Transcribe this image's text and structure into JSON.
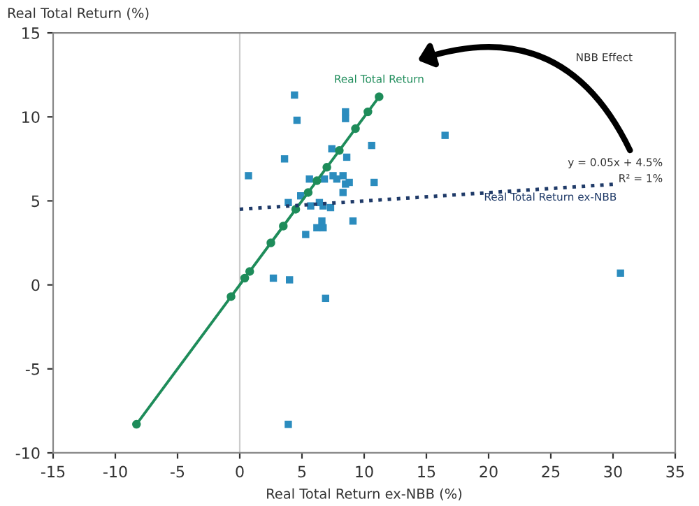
{
  "chart_data": {
    "type": "scatter",
    "xlabel": "Real Total Return ex-NBB (%)",
    "ylabel": "Real Total Return (%)",
    "xlim": [
      -15,
      35
    ],
    "xticks": [
      -15,
      -10,
      -5,
      0,
      5,
      10,
      15,
      20,
      25,
      30,
      35
    ],
    "ylim": [
      -10,
      15
    ],
    "yticks": [
      -10,
      -5,
      0,
      5,
      10,
      15
    ],
    "grid": false,
    "legend": false,
    "ref_lines": [
      {
        "axis": "x",
        "value": 0,
        "color": "#cccccc"
      }
    ],
    "annotations": [
      "NBB Effect",
      "y = 0.05x + 4.5%",
      "R² = 1%"
    ],
    "series": [
      {
        "color": "#2b8cbe",
        "marker": "square",
        "x": [
          0.7,
          4.4,
          4.6,
          3.6,
          8.5,
          8.5,
          7.4,
          10.6,
          16.5,
          8.6,
          7.5,
          8.3,
          7.8,
          8.5,
          8.8,
          10.8,
          8.3,
          3.9,
          4.9,
          5.7,
          6.4,
          7.3,
          5.6,
          6.8,
          5.3,
          6.2,
          6.7,
          6.6,
          9.1,
          2.7,
          4.0,
          6.9,
          3.9,
          30.6,
          6.7
        ],
        "values": [
          6.5,
          11.3,
          9.8,
          7.5,
          10.3,
          9.9,
          8.1,
          8.3,
          8.9,
          7.6,
          6.5,
          6.5,
          6.3,
          6.0,
          6.1,
          6.1,
          5.5,
          4.9,
          5.3,
          4.7,
          4.9,
          4.6,
          6.3,
          6.3,
          3.0,
          3.4,
          3.4,
          3.8,
          3.8,
          0.4,
          0.3,
          -0.8,
          -8.3,
          0.7,
          4.7
        ]
      },
      {
        "type": "line",
        "name": "Real Total Return",
        "color": "#1e8c5a",
        "marker": "circle",
        "line_style": "solid",
        "x": [
          -8.3,
          -0.7,
          0.4,
          0.8,
          2.5,
          3.5,
          4.5,
          5.5,
          6.2,
          7.0,
          8.0,
          9.3,
          10.3,
          11.2
        ],
        "values": [
          -8.3,
          -0.7,
          0.4,
          0.8,
          2.5,
          3.5,
          4.5,
          5.5,
          6.2,
          7.0,
          8.0,
          9.3,
          10.3,
          11.2
        ]
      },
      {
        "type": "line",
        "name": "Real Total Return ex-NBB",
        "color": "#1f3a68",
        "marker": "none",
        "line_style": "dotted",
        "x": [
          0,
          30.3
        ],
        "values": [
          4.5,
          6.0
        ]
      }
    ]
  }
}
